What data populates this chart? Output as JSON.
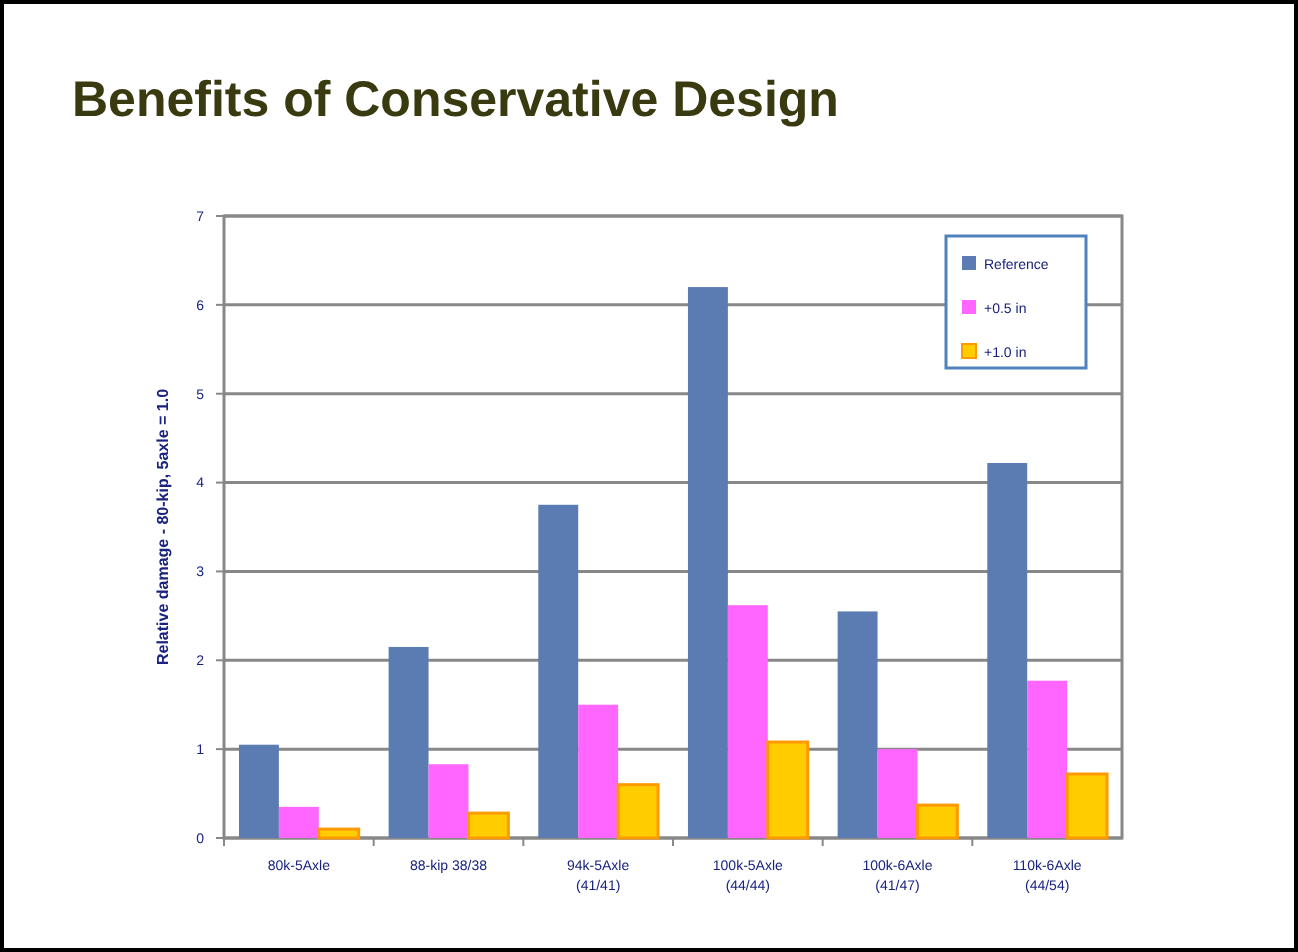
{
  "chart_data": {
    "type": "bar",
    "title": "Benefits of Conservative Design",
    "ylabel": "Relative damage - 80-kip, 5axle = 1.0",
    "categories": [
      "80k-5Axle",
      "88-kip 38/38",
      "94k-5Axle\n(41/41)",
      "100k-5Axle\n(44/44)",
      "100k-6Axle\n(41/47)",
      "110k-6Axle\n(44/54)"
    ],
    "series": [
      {
        "name": "Reference",
        "color": "#5b7bb3",
        "values": [
          1.05,
          2.15,
          3.75,
          6.2,
          2.55,
          4.22
        ]
      },
      {
        "name": "+0.5 in",
        "color": "#ff66ff",
        "values": [
          0.35,
          0.83,
          1.5,
          2.62,
          1.0,
          1.77
        ]
      },
      {
        "name": "+1.0 in",
        "color": "#ffcc00",
        "values": [
          0.1,
          0.28,
          0.6,
          1.08,
          0.37,
          0.72
        ]
      }
    ],
    "ylim": [
      0,
      7
    ],
    "yticks": [
      0,
      1,
      2,
      3,
      4,
      5,
      6,
      7
    ],
    "grid": "y",
    "legend": "top right"
  }
}
